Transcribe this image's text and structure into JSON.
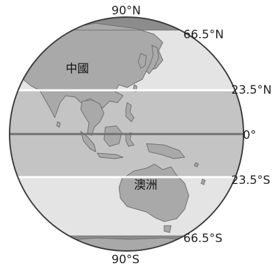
{
  "labels": {
    "north_pole": "90°N",
    "arctic_circle": "66.5°N",
    "tropic_cancer": "23.5°N",
    "equator": "0°",
    "tropic_capricorn": "23.5°S",
    "antarctic_circle": "66.5°S",
    "south_pole": "90°S",
    "china": "中國",
    "australia": "澳洲"
  },
  "colors": {
    "polar_zone": "#8c8c8c",
    "temperate_zone": "#e4e4e4",
    "tropical_zone": "#c4c4c4",
    "land": "#a9a9a9",
    "coastline": "#6f6f6f",
    "tropic_line": "#ffffff",
    "equator_line": "#707070",
    "globe_outline": "#3a3a3a"
  }
}
